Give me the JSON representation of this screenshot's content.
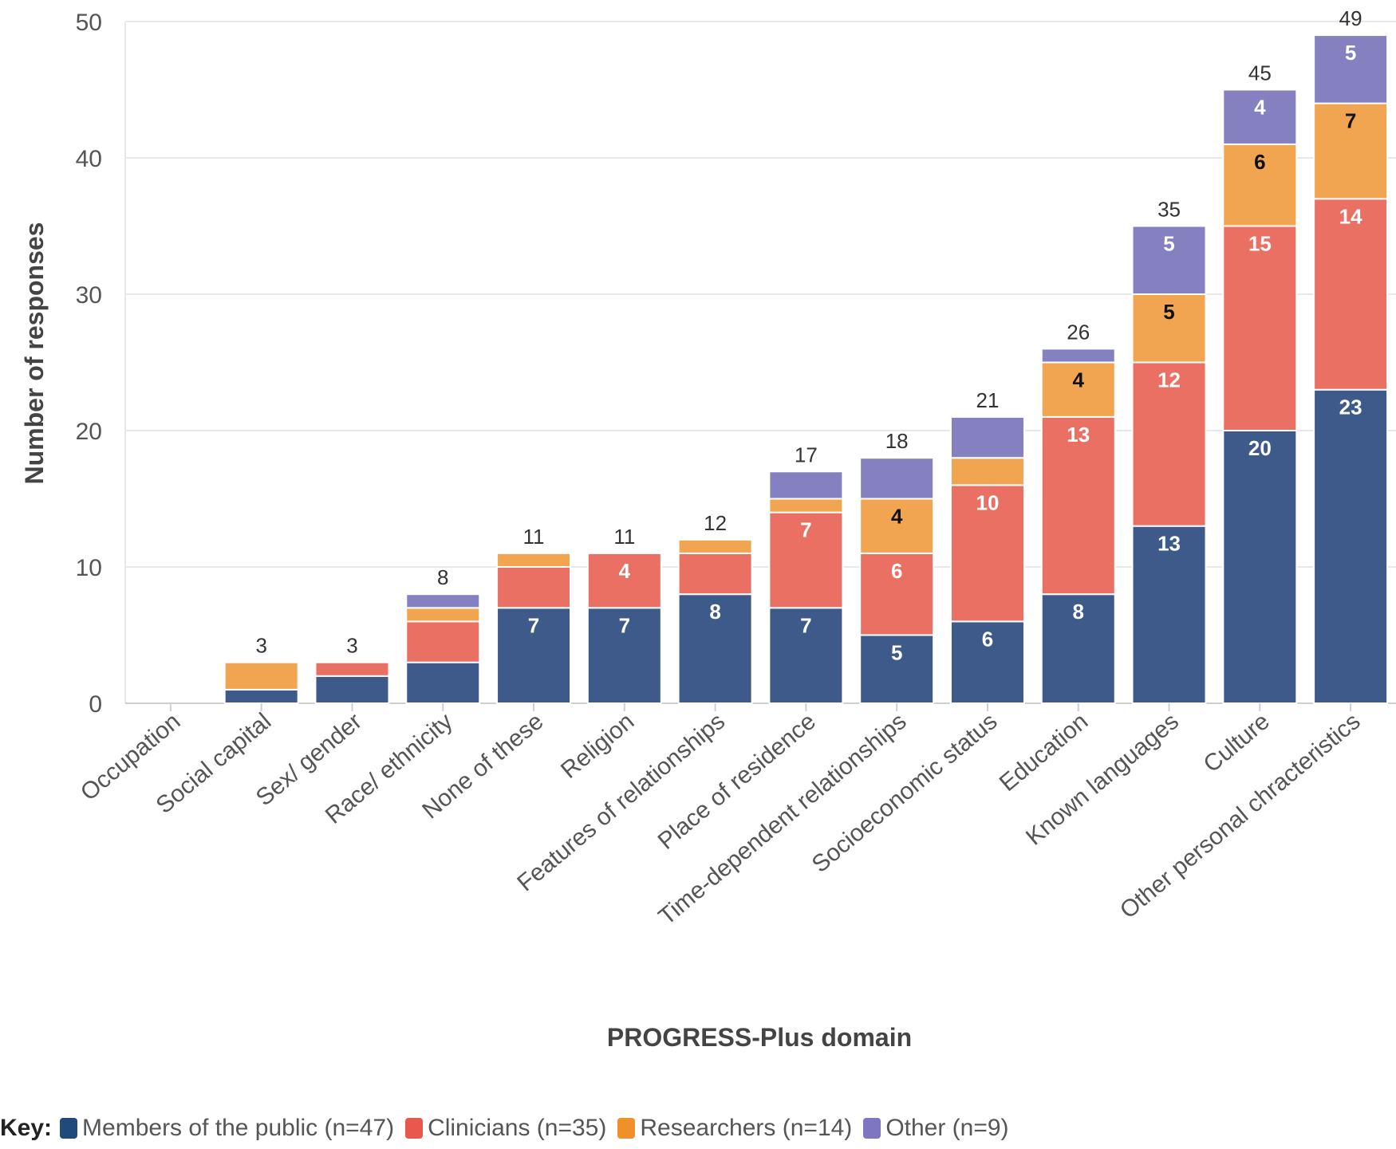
{
  "chart_data": {
    "type": "bar",
    "stacked": true,
    "title": "",
    "xlabel": "PROGRESS-Plus domain",
    "ylabel": "Number of responses",
    "ylim": [
      0,
      50
    ],
    "yticks": [
      0,
      10,
      20,
      30,
      40,
      50
    ],
    "grid": true,
    "legend_position": "bottom",
    "categories": [
      "Occupation",
      "Social capital",
      "Sex/ gender",
      "Race/ ethnicity",
      "None of these",
      "Religion",
      "Features of relationships",
      "Place of residence",
      "Time-dependent relationships",
      "Socioeconomic status",
      "Education",
      "Known languages",
      "Culture",
      "Other personal chracteristics"
    ],
    "series": [
      {
        "name": "Members of the public (n=47)",
        "color": "#3d5a8a",
        "label_color": "#ffffff",
        "values": [
          0,
          1,
          2,
          3,
          7,
          7,
          8,
          7,
          5,
          6,
          8,
          13,
          20,
          23
        ]
      },
      {
        "name": "Clinicians (n=35)",
        "color": "#ea7064",
        "label_color": "#ffffff",
        "values": [
          0,
          0,
          1,
          3,
          3,
          4,
          3,
          7,
          6,
          10,
          13,
          12,
          15,
          14
        ]
      },
      {
        "name": "Researchers (n=14)",
        "color": "#f2a551",
        "label_color": "#111111",
        "values": [
          0,
          2,
          0,
          1,
          1,
          0,
          1,
          1,
          4,
          2,
          4,
          5,
          6,
          7
        ]
      },
      {
        "name": "Other (n=9)",
        "color": "#8580bf",
        "label_color": "#ffffff",
        "values": [
          0,
          0,
          0,
          1,
          0,
          0,
          0,
          2,
          3,
          3,
          1,
          5,
          4,
          5
        ]
      }
    ],
    "totals": [
      null,
      3,
      3,
      8,
      11,
      11,
      12,
      17,
      18,
      21,
      26,
      35,
      45,
      49
    ],
    "segment_labels": [
      [
        null,
        null,
        null,
        null,
        7,
        7,
        8,
        7,
        5,
        6,
        8,
        13,
        20,
        23
      ],
      [
        null,
        null,
        null,
        null,
        null,
        4,
        null,
        7,
        6,
        10,
        13,
        12,
        15,
        14
      ],
      [
        null,
        null,
        null,
        null,
        null,
        null,
        null,
        null,
        4,
        null,
        4,
        5,
        6,
        7
      ],
      [
        null,
        null,
        null,
        null,
        null,
        null,
        null,
        null,
        null,
        null,
        null,
        5,
        4,
        5
      ]
    ]
  },
  "legend": {
    "key_label": "Key:",
    "items": [
      {
        "label": "Members of the public (n=47)",
        "color": "#1f4a7a"
      },
      {
        "label": "Clinicians (n=35)",
        "color": "#e8584c"
      },
      {
        "label": "Researchers (n=14)",
        "color": "#f0902a"
      },
      {
        "label": "Other (n=9)",
        "color": "#7e76c0"
      }
    ]
  }
}
